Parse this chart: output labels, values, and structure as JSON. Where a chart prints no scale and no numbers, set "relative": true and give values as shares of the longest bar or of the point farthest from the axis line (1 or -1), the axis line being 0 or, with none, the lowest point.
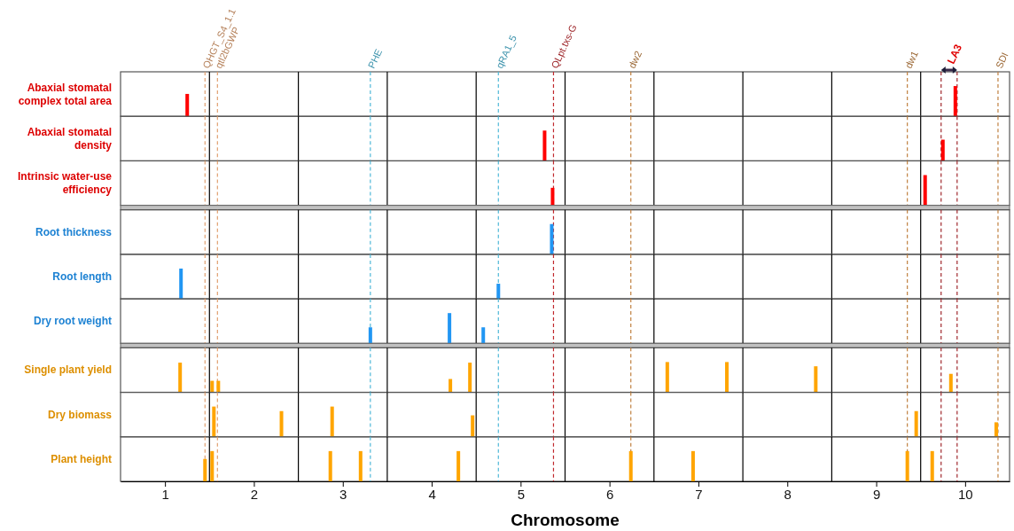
{
  "chart_data": [
    {
      "type": "bar",
      "title": "Abaxial stomatal complex total area",
      "x": [
        1.25,
        9.89
      ],
      "values": [
        0.74,
        1
      ],
      "color": "#ff0000",
      "relative": true,
      "xlim": [
        0.5,
        10.5
      ],
      "tick_labels": false,
      "ref_lines": [
        {
          "axis": "x",
          "value": 1.5,
          "color": "#000000",
          "line_style": "solid"
        },
        {
          "axis": "x",
          "value": 2.5,
          "color": "#000000",
          "line_style": "solid"
        },
        {
          "axis": "x",
          "value": 3.5,
          "color": "#000000",
          "line_style": "solid"
        },
        {
          "axis": "x",
          "value": 4.5,
          "color": "#000000",
          "line_style": "solid"
        },
        {
          "axis": "x",
          "value": 5.5,
          "color": "#000000",
          "line_style": "solid"
        },
        {
          "axis": "x",
          "value": 6.5,
          "color": "#000000",
          "line_style": "solid"
        },
        {
          "axis": "x",
          "value": 7.5,
          "color": "#000000",
          "line_style": "solid"
        },
        {
          "axis": "x",
          "value": 8.5,
          "color": "#000000",
          "line_style": "solid"
        },
        {
          "axis": "x",
          "value": 9.5,
          "color": "#000000",
          "line_style": "solid"
        },
        {
          "axis": "x",
          "value": 1.45,
          "label": "QHGT_S4_1.1",
          "color": "#e0a070",
          "line_style": "dashed"
        },
        {
          "axis": "x",
          "value": 1.59,
          "label": "qtl2bGWP",
          "color": "#e0a070",
          "line_style": "dashed"
        },
        {
          "axis": "x",
          "value": 3.31,
          "label": "PHE",
          "color": "#4fb8d8",
          "line_style": "dashed"
        },
        {
          "axis": "x",
          "value": 4.75,
          "label": "qRA1_5",
          "color": "#4fb8d8",
          "line_style": "dashed"
        },
        {
          "axis": "x",
          "value": 5.37,
          "label": "QLpt.txs-G",
          "color": "#c0282d",
          "line_style": "dashed"
        },
        {
          "axis": "x",
          "value": 6.24,
          "label": "dw2",
          "color": "#c08040",
          "line_style": "dashed"
        },
        {
          "axis": "x",
          "value": 9.35,
          "label": "dw1",
          "color": "#c08040",
          "line_style": "dashed"
        },
        {
          "axis": "x",
          "value": 10.37,
          "label": "SDI",
          "color": "#c08040",
          "line_style": "dashed"
        },
        {
          "axis": "x",
          "value": 9.73,
          "label": "LA3",
          "color": "#a0282d",
          "line_style": "dashed"
        },
        {
          "axis": "x",
          "value": 9.91,
          "color": "#a0282d",
          "line_style": "dashed"
        }
      ]
    },
    {
      "type": "bar",
      "title": "Abaxial stomatal density",
      "x": [
        5.27,
        9.75
      ],
      "values": [
        1,
        0.7
      ],
      "color": "#ff0000",
      "relative": true,
      "xlim": [
        0.5,
        10.5
      ],
      "tick_labels": false,
      "ref_lines": [
        {
          "axis": "x",
          "value": 1.5,
          "color": "#000000",
          "line_style": "solid"
        },
        {
          "axis": "x",
          "value": 2.5,
          "color": "#000000",
          "line_style": "solid"
        },
        {
          "axis": "x",
          "value": 3.5,
          "color": "#000000",
          "line_style": "solid"
        },
        {
          "axis": "x",
          "value": 4.5,
          "color": "#000000",
          "line_style": "solid"
        },
        {
          "axis": "x",
          "value": 5.5,
          "color": "#000000",
          "line_style": "solid"
        },
        {
          "axis": "x",
          "value": 6.5,
          "color": "#000000",
          "line_style": "solid"
        },
        {
          "axis": "x",
          "value": 7.5,
          "color": "#000000",
          "line_style": "solid"
        },
        {
          "axis": "x",
          "value": 8.5,
          "color": "#000000",
          "line_style": "solid"
        },
        {
          "axis": "x",
          "value": 9.5,
          "color": "#000000",
          "line_style": "solid"
        },
        {
          "axis": "x",
          "value": 1.45,
          "color": "#e0a070",
          "line_style": "dashed"
        },
        {
          "axis": "x",
          "value": 1.59,
          "color": "#e0a070",
          "line_style": "dashed"
        },
        {
          "axis": "x",
          "value": 3.31,
          "color": "#4fb8d8",
          "line_style": "dashed"
        },
        {
          "axis": "x",
          "value": 4.75,
          "color": "#4fb8d8",
          "line_style": "dashed"
        },
        {
          "axis": "x",
          "value": 5.37,
          "color": "#c0282d",
          "line_style": "dashed"
        },
        {
          "axis": "x",
          "value": 6.24,
          "color": "#c08040",
          "line_style": "dashed"
        },
        {
          "axis": "x",
          "value": 9.35,
          "color": "#c08040",
          "line_style": "dashed"
        },
        {
          "axis": "x",
          "value": 10.37,
          "color": "#c08040",
          "line_style": "dashed"
        },
        {
          "axis": "x",
          "value": 9.73,
          "color": "#a0282d",
          "line_style": "dashed"
        },
        {
          "axis": "x",
          "value": 9.91,
          "color": "#a0282d",
          "line_style": "dashed"
        }
      ]
    },
    {
      "type": "bar",
      "title": "Intrinsic water-use efficiency",
      "x": [
        5.36,
        9.55
      ],
      "values": [
        0.58,
        1
      ],
      "color": "#ff0000",
      "relative": true,
      "xlim": [
        0.5,
        10.5
      ],
      "tick_labels": false,
      "ref_lines": [
        {
          "axis": "x",
          "value": 1.5,
          "color": "#000000",
          "line_style": "solid"
        },
        {
          "axis": "x",
          "value": 2.5,
          "color": "#000000",
          "line_style": "solid"
        },
        {
          "axis": "x",
          "value": 3.5,
          "color": "#000000",
          "line_style": "solid"
        },
        {
          "axis": "x",
          "value": 4.5,
          "color": "#000000",
          "line_style": "solid"
        },
        {
          "axis": "x",
          "value": 5.5,
          "color": "#000000",
          "line_style": "solid"
        },
        {
          "axis": "x",
          "value": 6.5,
          "color": "#000000",
          "line_style": "solid"
        },
        {
          "axis": "x",
          "value": 7.5,
          "color": "#000000",
          "line_style": "solid"
        },
        {
          "axis": "x",
          "value": 8.5,
          "color": "#000000",
          "line_style": "solid"
        },
        {
          "axis": "x",
          "value": 9.5,
          "color": "#000000",
          "line_style": "solid"
        },
        {
          "axis": "x",
          "value": 1.45,
          "color": "#e0a070",
          "line_style": "dashed"
        },
        {
          "axis": "x",
          "value": 1.59,
          "color": "#e0a070",
          "line_style": "dashed"
        },
        {
          "axis": "x",
          "value": 3.31,
          "color": "#4fb8d8",
          "line_style": "dashed"
        },
        {
          "axis": "x",
          "value": 4.75,
          "color": "#4fb8d8",
          "line_style": "dashed"
        },
        {
          "axis": "x",
          "value": 5.37,
          "color": "#c0282d",
          "line_style": "dashed"
        },
        {
          "axis": "x",
          "value": 6.24,
          "color": "#c08040",
          "line_style": "dashed"
        },
        {
          "axis": "x",
          "value": 9.35,
          "color": "#c08040",
          "line_style": "dashed"
        },
        {
          "axis": "x",
          "value": 10.37,
          "color": "#c08040",
          "line_style": "dashed"
        },
        {
          "axis": "x",
          "value": 9.73,
          "color": "#a0282d",
          "line_style": "dashed"
        },
        {
          "axis": "x",
          "value": 9.91,
          "color": "#a0282d",
          "line_style": "dashed"
        }
      ]
    },
    {
      "type": "bar",
      "title": "Root thickness",
      "x": [
        5.35
      ],
      "values": [
        1
      ],
      "color": "#2196f3",
      "relative": true,
      "xlim": [
        0.5,
        10.5
      ],
      "tick_labels": false,
      "ref_lines": [
        {
          "axis": "x",
          "value": 1.5,
          "color": "#000000",
          "line_style": "solid"
        },
        {
          "axis": "x",
          "value": 2.5,
          "color": "#000000",
          "line_style": "solid"
        },
        {
          "axis": "x",
          "value": 3.5,
          "color": "#000000",
          "line_style": "solid"
        },
        {
          "axis": "x",
          "value": 4.5,
          "color": "#000000",
          "line_style": "solid"
        },
        {
          "axis": "x",
          "value": 5.5,
          "color": "#000000",
          "line_style": "solid"
        },
        {
          "axis": "x",
          "value": 6.5,
          "color": "#000000",
          "line_style": "solid"
        },
        {
          "axis": "x",
          "value": 7.5,
          "color": "#000000",
          "line_style": "solid"
        },
        {
          "axis": "x",
          "value": 8.5,
          "color": "#000000",
          "line_style": "solid"
        },
        {
          "axis": "x",
          "value": 9.5,
          "color": "#000000",
          "line_style": "solid"
        },
        {
          "axis": "x",
          "value": 1.45,
          "color": "#e0a070",
          "line_style": "dashed"
        },
        {
          "axis": "x",
          "value": 1.59,
          "color": "#e0a070",
          "line_style": "dashed"
        },
        {
          "axis": "x",
          "value": 3.31,
          "color": "#4fb8d8",
          "line_style": "dashed"
        },
        {
          "axis": "x",
          "value": 4.75,
          "color": "#4fb8d8",
          "line_style": "dashed"
        },
        {
          "axis": "x",
          "value": 5.37,
          "color": "#c0282d",
          "line_style": "dashed"
        },
        {
          "axis": "x",
          "value": 6.24,
          "color": "#c08040",
          "line_style": "dashed"
        },
        {
          "axis": "x",
          "value": 9.35,
          "color": "#c08040",
          "line_style": "dashed"
        },
        {
          "axis": "x",
          "value": 10.37,
          "color": "#c08040",
          "line_style": "dashed"
        },
        {
          "axis": "x",
          "value": 9.73,
          "color": "#a0282d",
          "line_style": "dashed"
        },
        {
          "axis": "x",
          "value": 9.91,
          "color": "#a0282d",
          "line_style": "dashed"
        }
      ]
    },
    {
      "type": "bar",
      "title": "Root length",
      "x": [
        1.18,
        4.75
      ],
      "values": [
        1,
        0.5
      ],
      "color": "#2196f3",
      "relative": true,
      "xlim": [
        0.5,
        10.5
      ],
      "tick_labels": false,
      "ref_lines": [
        {
          "axis": "x",
          "value": 1.5,
          "color": "#000000",
          "line_style": "solid"
        },
        {
          "axis": "x",
          "value": 2.5,
          "color": "#000000",
          "line_style": "solid"
        },
        {
          "axis": "x",
          "value": 3.5,
          "color": "#000000",
          "line_style": "solid"
        },
        {
          "axis": "x",
          "value": 4.5,
          "color": "#000000",
          "line_style": "solid"
        },
        {
          "axis": "x",
          "value": 5.5,
          "color": "#000000",
          "line_style": "solid"
        },
        {
          "axis": "x",
          "value": 6.5,
          "color": "#000000",
          "line_style": "solid"
        },
        {
          "axis": "x",
          "value": 7.5,
          "color": "#000000",
          "line_style": "solid"
        },
        {
          "axis": "x",
          "value": 8.5,
          "color": "#000000",
          "line_style": "solid"
        },
        {
          "axis": "x",
          "value": 9.5,
          "color": "#000000",
          "line_style": "solid"
        },
        {
          "axis": "x",
          "value": 1.45,
          "color": "#e0a070",
          "line_style": "dashed"
        },
        {
          "axis": "x",
          "value": 1.59,
          "color": "#e0a070",
          "line_style": "dashed"
        },
        {
          "axis": "x",
          "value": 3.31,
          "color": "#4fb8d8",
          "line_style": "dashed"
        },
        {
          "axis": "x",
          "value": 4.75,
          "color": "#4fb8d8",
          "line_style": "dashed"
        },
        {
          "axis": "x",
          "value": 5.37,
          "color": "#c0282d",
          "line_style": "dashed"
        },
        {
          "axis": "x",
          "value": 6.24,
          "color": "#c08040",
          "line_style": "dashed"
        },
        {
          "axis": "x",
          "value": 9.35,
          "color": "#c08040",
          "line_style": "dashed"
        },
        {
          "axis": "x",
          "value": 10.37,
          "color": "#c08040",
          "line_style": "dashed"
        },
        {
          "axis": "x",
          "value": 9.73,
          "color": "#a0282d",
          "line_style": "dashed"
        },
        {
          "axis": "x",
          "value": 9.91,
          "color": "#a0282d",
          "line_style": "dashed"
        }
      ]
    },
    {
      "type": "bar",
      "title": "Dry root weight",
      "x": [
        3.31,
        4.2,
        4.58
      ],
      "values": [
        0.53,
        1,
        0.53
      ],
      "color": "#2196f3",
      "relative": true,
      "xlim": [
        0.5,
        10.5
      ],
      "tick_labels": false,
      "ref_lines": [
        {
          "axis": "x",
          "value": 1.5,
          "color": "#000000",
          "line_style": "solid"
        },
        {
          "axis": "x",
          "value": 2.5,
          "color": "#000000",
          "line_style": "solid"
        },
        {
          "axis": "x",
          "value": 3.5,
          "color": "#000000",
          "line_style": "solid"
        },
        {
          "axis": "x",
          "value": 4.5,
          "color": "#000000",
          "line_style": "solid"
        },
        {
          "axis": "x",
          "value": 5.5,
          "color": "#000000",
          "line_style": "solid"
        },
        {
          "axis": "x",
          "value": 6.5,
          "color": "#000000",
          "line_style": "solid"
        },
        {
          "axis": "x",
          "value": 7.5,
          "color": "#000000",
          "line_style": "solid"
        },
        {
          "axis": "x",
          "value": 8.5,
          "color": "#000000",
          "line_style": "solid"
        },
        {
          "axis": "x",
          "value": 9.5,
          "color": "#000000",
          "line_style": "solid"
        },
        {
          "axis": "x",
          "value": 1.45,
          "color": "#e0a070",
          "line_style": "dashed"
        },
        {
          "axis": "x",
          "value": 1.59,
          "color": "#e0a070",
          "line_style": "dashed"
        },
        {
          "axis": "x",
          "value": 3.31,
          "color": "#4fb8d8",
          "line_style": "dashed"
        },
        {
          "axis": "x",
          "value": 4.75,
          "color": "#4fb8d8",
          "line_style": "dashed"
        },
        {
          "axis": "x",
          "value": 5.37,
          "color": "#c0282d",
          "line_style": "dashed"
        },
        {
          "axis": "x",
          "value": 6.24,
          "color": "#c08040",
          "line_style": "dashed"
        },
        {
          "axis": "x",
          "value": 9.35,
          "color": "#c08040",
          "line_style": "dashed"
        },
        {
          "axis": "x",
          "value": 10.37,
          "color": "#c08040",
          "line_style": "dashed"
        },
        {
          "axis": "x",
          "value": 9.73,
          "color": "#a0282d",
          "line_style": "dashed"
        },
        {
          "axis": "x",
          "value": 9.91,
          "color": "#a0282d",
          "line_style": "dashed"
        }
      ]
    },
    {
      "type": "bar",
      "title": "Single plant yield",
      "x": [
        1.17,
        1.53,
        1.6,
        4.21,
        4.43,
        6.65,
        7.32,
        8.32,
        9.84
      ],
      "values": [
        0.98,
        0.38,
        0.38,
        0.44,
        0.98,
        1,
        1,
        0.86,
        0.61
      ],
      "color": "#ffa500",
      "relative": true,
      "xlim": [
        0.5,
        10.5
      ],
      "tick_labels": false,
      "ref_lines": [
        {
          "axis": "x",
          "value": 1.5,
          "color": "#000000",
          "line_style": "solid"
        },
        {
          "axis": "x",
          "value": 2.5,
          "color": "#000000",
          "line_style": "solid"
        },
        {
          "axis": "x",
          "value": 3.5,
          "color": "#000000",
          "line_style": "solid"
        },
        {
          "axis": "x",
          "value": 4.5,
          "color": "#000000",
          "line_style": "solid"
        },
        {
          "axis": "x",
          "value": 5.5,
          "color": "#000000",
          "line_style": "solid"
        },
        {
          "axis": "x",
          "value": 6.5,
          "color": "#000000",
          "line_style": "solid"
        },
        {
          "axis": "x",
          "value": 7.5,
          "color": "#000000",
          "line_style": "solid"
        },
        {
          "axis": "x",
          "value": 8.5,
          "color": "#000000",
          "line_style": "solid"
        },
        {
          "axis": "x",
          "value": 9.5,
          "color": "#000000",
          "line_style": "solid"
        },
        {
          "axis": "x",
          "value": 1.45,
          "color": "#e0a070",
          "line_style": "dashed"
        },
        {
          "axis": "x",
          "value": 1.59,
          "color": "#e0a070",
          "line_style": "dashed"
        },
        {
          "axis": "x",
          "value": 3.31,
          "color": "#4fb8d8",
          "line_style": "dashed"
        },
        {
          "axis": "x",
          "value": 4.75,
          "color": "#4fb8d8",
          "line_style": "dashed"
        },
        {
          "axis": "x",
          "value": 5.37,
          "color": "#c0282d",
          "line_style": "dashed"
        },
        {
          "axis": "x",
          "value": 6.24,
          "color": "#c08040",
          "line_style": "dashed"
        },
        {
          "axis": "x",
          "value": 9.35,
          "color": "#c08040",
          "line_style": "dashed"
        },
        {
          "axis": "x",
          "value": 10.37,
          "color": "#c08040",
          "line_style": "dashed"
        },
        {
          "axis": "x",
          "value": 9.73,
          "color": "#a0282d",
          "line_style": "dashed"
        },
        {
          "axis": "x",
          "value": 9.91,
          "color": "#a0282d",
          "line_style": "dashed"
        }
      ]
    },
    {
      "type": "bar",
      "title": "Dry biomass",
      "x": [
        1.55,
        2.31,
        2.88,
        4.46,
        9.45,
        10.35
      ],
      "values": [
        1,
        0.85,
        1,
        0.71,
        0.85,
        0.48
      ],
      "color": "#ffa500",
      "relative": true,
      "xlim": [
        0.5,
        10.5
      ],
      "tick_labels": false,
      "ref_lines": [
        {
          "axis": "x",
          "value": 1.5,
          "color": "#000000",
          "line_style": "solid"
        },
        {
          "axis": "x",
          "value": 2.5,
          "color": "#000000",
          "line_style": "solid"
        },
        {
          "axis": "x",
          "value": 3.5,
          "color": "#000000",
          "line_style": "solid"
        },
        {
          "axis": "x",
          "value": 4.5,
          "color": "#000000",
          "line_style": "solid"
        },
        {
          "axis": "x",
          "value": 5.5,
          "color": "#000000",
          "line_style": "solid"
        },
        {
          "axis": "x",
          "value": 6.5,
          "color": "#000000",
          "line_style": "solid"
        },
        {
          "axis": "x",
          "value": 7.5,
          "color": "#000000",
          "line_style": "solid"
        },
        {
          "axis": "x",
          "value": 8.5,
          "color": "#000000",
          "line_style": "solid"
        },
        {
          "axis": "x",
          "value": 9.5,
          "color": "#000000",
          "line_style": "solid"
        },
        {
          "axis": "x",
          "value": 1.45,
          "color": "#e0a070",
          "line_style": "dashed"
        },
        {
          "axis": "x",
          "value": 1.59,
          "color": "#e0a070",
          "line_style": "dashed"
        },
        {
          "axis": "x",
          "value": 3.31,
          "color": "#4fb8d8",
          "line_style": "dashed"
        },
        {
          "axis": "x",
          "value": 4.75,
          "color": "#4fb8d8",
          "line_style": "dashed"
        },
        {
          "axis": "x",
          "value": 5.37,
          "color": "#c0282d",
          "line_style": "dashed"
        },
        {
          "axis": "x",
          "value": 6.24,
          "color": "#c08040",
          "line_style": "dashed"
        },
        {
          "axis": "x",
          "value": 9.35,
          "color": "#c08040",
          "line_style": "dashed"
        },
        {
          "axis": "x",
          "value": 10.37,
          "color": "#c08040",
          "line_style": "dashed"
        },
        {
          "axis": "x",
          "value": 9.73,
          "color": "#a0282d",
          "line_style": "dashed"
        },
        {
          "axis": "x",
          "value": 9.91,
          "color": "#a0282d",
          "line_style": "dashed"
        }
      ]
    },
    {
      "type": "bar",
      "title": "Plant height",
      "xlabel": "Chromosome",
      "x": [
        1.45,
        1.53,
        2.86,
        3.2,
        4.3,
        6.24,
        6.94,
        9.35,
        9.63
      ],
      "values": [
        0.74,
        1,
        1,
        1,
        1,
        1,
        1,
        1,
        1
      ],
      "color": "#ffa500",
      "relative": true,
      "xlim": [
        0.5,
        10.5
      ],
      "xticks": [
        1,
        2,
        3,
        4,
        5,
        6,
        7,
        8,
        9,
        10
      ],
      "tick_labels": "x",
      "ref_lines": [
        {
          "axis": "x",
          "value": 1.5,
          "color": "#000000",
          "line_style": "solid"
        },
        {
          "axis": "x",
          "value": 2.5,
          "color": "#000000",
          "line_style": "solid"
        },
        {
          "axis": "x",
          "value": 3.5,
          "color": "#000000",
          "line_style": "solid"
        },
        {
          "axis": "x",
          "value": 4.5,
          "color": "#000000",
          "line_style": "solid"
        },
        {
          "axis": "x",
          "value": 5.5,
          "color": "#000000",
          "line_style": "solid"
        },
        {
          "axis": "x",
          "value": 6.5,
          "color": "#000000",
          "line_style": "solid"
        },
        {
          "axis": "x",
          "value": 7.5,
          "color": "#000000",
          "line_style": "solid"
        },
        {
          "axis": "x",
          "value": 8.5,
          "color": "#000000",
          "line_style": "solid"
        },
        {
          "axis": "x",
          "value": 9.5,
          "color": "#000000",
          "line_style": "solid"
        },
        {
          "axis": "x",
          "value": 1.45,
          "color": "#e0a070",
          "line_style": "dashed"
        },
        {
          "axis": "x",
          "value": 1.59,
          "color": "#e0a070",
          "line_style": "dashed"
        },
        {
          "axis": "x",
          "value": 3.31,
          "color": "#4fb8d8",
          "line_style": "dashed"
        },
        {
          "axis": "x",
          "value": 4.75,
          "color": "#4fb8d8",
          "line_style": "dashed"
        },
        {
          "axis": "x",
          "value": 5.37,
          "color": "#c0282d",
          "line_style": "dashed"
        },
        {
          "axis": "x",
          "value": 6.24,
          "color": "#c08040",
          "line_style": "dashed"
        },
        {
          "axis": "x",
          "value": 9.35,
          "color": "#c08040",
          "line_style": "dashed"
        },
        {
          "axis": "x",
          "value": 10.37,
          "color": "#c08040",
          "line_style": "dashed"
        },
        {
          "axis": "x",
          "value": 9.73,
          "color": "#a0282d",
          "line_style": "dashed"
        },
        {
          "axis": "x",
          "value": 9.91,
          "color": "#a0282d",
          "line_style": "dashed"
        }
      ]
    }
  ]
}
